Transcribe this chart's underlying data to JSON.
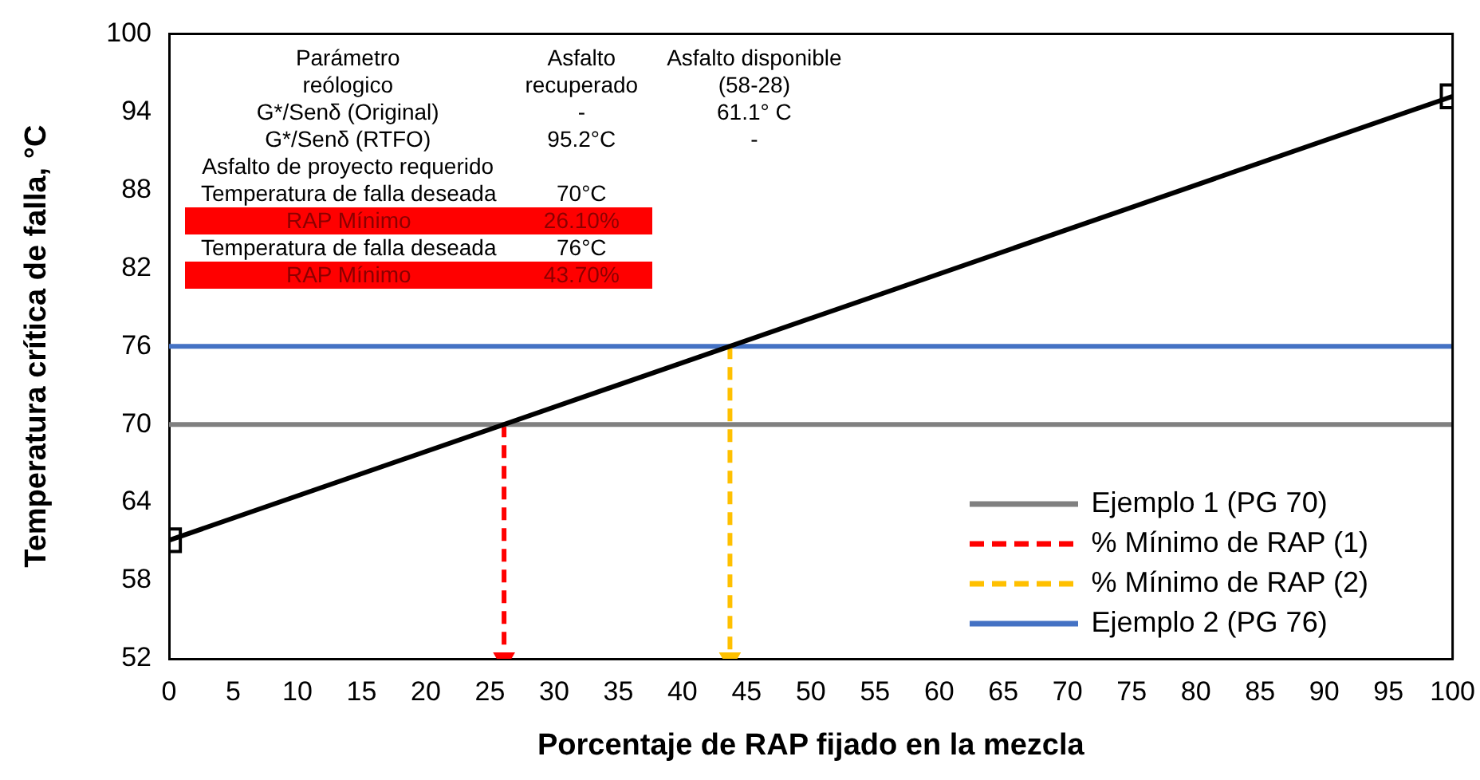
{
  "chart_data": {
    "type": "line",
    "xlabel": "Porcentaje de RAP fijado en la mezcla",
    "ylabel": "Temperatura crítica de falla, °C",
    "xlim": [
      0,
      100
    ],
    "xticks": [
      0,
      5,
      10,
      15,
      20,
      25,
      30,
      35,
      40,
      45,
      50,
      55,
      60,
      65,
      70,
      75,
      80,
      85,
      90,
      95,
      100
    ],
    "ylim": [
      52,
      100
    ],
    "yticks": [
      52,
      58,
      64,
      70,
      76,
      82,
      88,
      94,
      100
    ],
    "grid": false,
    "legend": "bottom right",
    "series": [
      {
        "x": [
          0,
          100
        ],
        "values": [
          61.1,
          95.2
        ],
        "color": "#000000",
        "marker": "square"
      },
      {
        "name": "Ejemplo 1 (PG 70)",
        "x": [
          0,
          100
        ],
        "values": [
          70,
          70
        ],
        "color": "#808080"
      },
      {
        "name": "% Mínimo de RAP (1)",
        "x": [
          26.1,
          26.1
        ],
        "values": [
          70,
          52
        ],
        "color": "#ff0000",
        "line_style": "dashed",
        "marker": "triangle"
      },
      {
        "name": "% Mínimo de RAP (2)",
        "x": [
          43.7,
          43.7
        ],
        "values": [
          76,
          52
        ],
        "color": "#ffc000",
        "line_style": "dashed",
        "marker": "triangle"
      },
      {
        "name": "Ejemplo 2 (PG 76)",
        "x": [
          0,
          100
        ],
        "values": [
          76,
          76
        ],
        "color": "#4472c4"
      }
    ],
    "annotations": [
      "Parámetro",
      "Asfalto",
      "Asfalto disponible",
      "reólogico",
      "recuperado",
      "(58-28)",
      "G*/Senδ (Original)",
      "-",
      "61.1° C",
      "G*/Senδ (RTFO)",
      "95.2°C",
      "-",
      "Asfalto de proyecto requerido",
      "Temperatura de falla deseada",
      "70°C",
      "RAP Mínimo",
      "26.10%",
      "Temperatura de falla deseada",
      "76°C",
      "RAP Mínimo",
      "43.70%"
    ]
  }
}
